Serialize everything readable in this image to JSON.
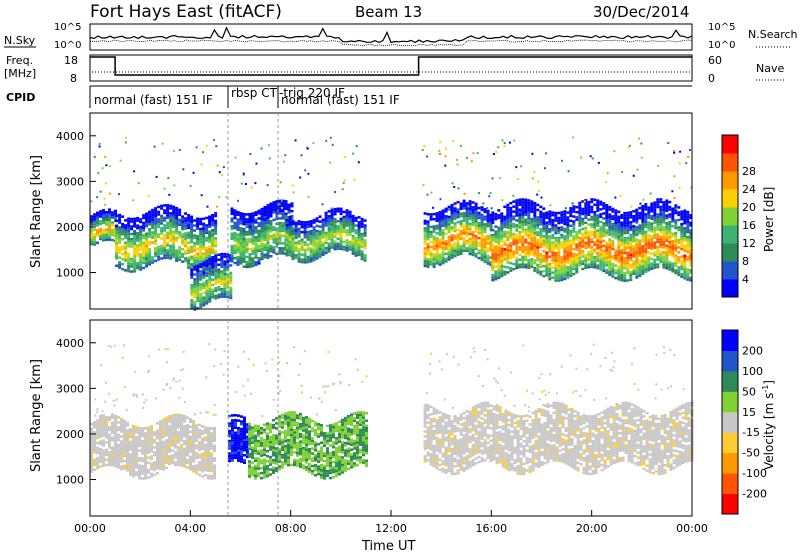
{
  "header": {
    "title": "Fort Hays East (fitACF)",
    "beam": "Beam 13",
    "date": "30/Dec/2014"
  },
  "status_panels": {
    "nsky_label": "N.Sky",
    "nsearch_label": "N.Search",
    "freq_label_line1": "Freq.",
    "freq_label_line2": "[MHz]",
    "nave_label": "Nave",
    "cpid_label": "CPID",
    "noise_ticks_left": [
      "10^5",
      "10^0"
    ],
    "noise_ticks_right": [
      "10^5",
      "10^0"
    ],
    "freq_ticks": [
      "18",
      "8"
    ],
    "nave_ticks": [
      "60",
      "0"
    ],
    "cpid_segments": [
      {
        "label": "normal (fast) 151 IF",
        "start_h": 0.0,
        "end_h": 5.55
      },
      {
        "label": "rbsp CT",
        "start_h": 5.55,
        "end_h": 7.8
      },
      {
        "label": "-trig 220 IF",
        "start_h": 7.8,
        "end_h": 7.8
      },
      {
        "label": "normal (fast) 151 IF",
        "start_h": 7.8,
        "end_h": 24.0
      }
    ],
    "freq_step": [
      {
        "from_h": 0.0,
        "to_h": 1.0,
        "mhz": 18
      },
      {
        "from_h": 1.0,
        "to_h": 13.1,
        "mhz": 10.5
      },
      {
        "from_h": 13.1,
        "to_h": 24.0,
        "mhz": 18
      }
    ]
  },
  "chart_data": [
    {
      "type": "heatmap",
      "name": "power",
      "ylabel": "Slant Range [km]",
      "yticks": [
        "1000",
        "2000",
        "3000",
        "4000"
      ],
      "ylim": [
        200,
        4500
      ],
      "xlim": [
        0,
        24
      ],
      "colorbar_label": "Power [dB]",
      "colorbar_ticks": [
        "4",
        "8",
        "12",
        "16",
        "20",
        "24",
        "28"
      ],
      "colorbar_colors": [
        "#0000ff",
        "#2255cc",
        "#2e8b57",
        "#3cb371",
        "#7fd134",
        "#ffd000",
        "#ff9900",
        "#ff5500",
        "#ff0000"
      ],
      "echo_bands": [
        {
          "from_h": 0.0,
          "to_h": 1.0,
          "range_lo": 1600,
          "range_hi": 2300,
          "peak_db": 20
        },
        {
          "from_h": 1.0,
          "to_h": 5.0,
          "range_lo": 1200,
          "range_hi": 2400,
          "peak_db": 18
        },
        {
          "from_h": 4.0,
          "to_h": 5.6,
          "range_lo": 350,
          "range_hi": 1300,
          "peak_db": 16
        },
        {
          "from_h": 5.6,
          "to_h": 8.0,
          "range_lo": 1300,
          "range_hi": 2500,
          "peak_db": 14
        },
        {
          "from_h": 7.8,
          "to_h": 11.0,
          "range_lo": 1400,
          "range_hi": 2300,
          "peak_db": 16
        },
        {
          "from_h": 13.3,
          "to_h": 16.0,
          "range_lo": 1300,
          "range_hi": 2500,
          "peak_db": 22
        },
        {
          "from_h": 16.0,
          "to_h": 23.9,
          "range_lo": 1000,
          "range_hi": 2500,
          "peak_db": 24
        }
      ]
    },
    {
      "type": "heatmap",
      "name": "velocity",
      "ylabel": "Slant Range [km]",
      "yticks": [
        "1000",
        "2000",
        "3000",
        "4000"
      ],
      "ylim": [
        200,
        4500
      ],
      "xlim": [
        0,
        24
      ],
      "xlabel": "Time UT",
      "xticks": [
        "00:00",
        "04:00",
        "08:00",
        "12:00",
        "16:00",
        "20:00",
        "00:00"
      ],
      "colorbar_label": "Velocity [m s",
      "colorbar_label_sup": "-1",
      "colorbar_label_end": "]",
      "colorbar_ticks": [
        "-200",
        "-100",
        "-50",
        "-15",
        "15",
        "50",
        "100",
        "200"
      ],
      "colorbar_colors": [
        "#ff0000",
        "#ff5500",
        "#ff9900",
        "#ffcc33",
        "#c8c8c8",
        "#7fd134",
        "#2e8b57",
        "#2255cc",
        "#0000ff"
      ],
      "velocity_bands": [
        {
          "from_h": 0.0,
          "to_h": 5.0,
          "range_lo": 1200,
          "range_hi": 2300,
          "class": "ground"
        },
        {
          "from_h": 5.5,
          "to_h": 6.3,
          "range_lo": 1300,
          "range_hi": 2300,
          "class": "positive_fast"
        },
        {
          "from_h": 6.3,
          "to_h": 11.0,
          "range_lo": 1200,
          "range_hi": 2400,
          "class": "positive"
        },
        {
          "from_h": 13.3,
          "to_h": 24.0,
          "range_lo": 1300,
          "range_hi": 2600,
          "class": "ground"
        }
      ]
    }
  ]
}
